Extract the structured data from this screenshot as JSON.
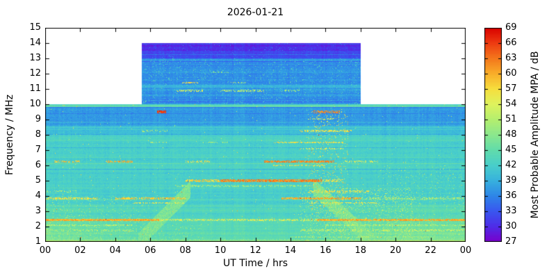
{
  "chart_data": {
    "type": "heatmap",
    "title": "2026-01-21",
    "xlabel": "UT Time / hrs",
    "ylabel": "Frequency / MHz",
    "x_range_hours": [
      0,
      24
    ],
    "y_range_mhz": [
      1,
      15
    ],
    "x_ticks": [
      "00",
      "02",
      "04",
      "06",
      "08",
      "10",
      "12",
      "14",
      "16",
      "18",
      "20",
      "22",
      "00"
    ],
    "y_ticks": [
      1,
      2,
      3,
      4,
      5,
      6,
      7,
      8,
      9,
      10,
      11,
      12,
      13,
      14,
      15
    ],
    "grid": false,
    "colorbar": {
      "label": "Most Probable Amplitude MPA / dB",
      "min": 27,
      "max": 69,
      "ticks": [
        27,
        30,
        33,
        36,
        39,
        42,
        45,
        48,
        51,
        54,
        57,
        60,
        63,
        66,
        69
      ],
      "colormap_stops": [
        [
          27,
          "#7a00cc"
        ],
        [
          30,
          "#4f2de8"
        ],
        [
          33,
          "#3a57f0"
        ],
        [
          36,
          "#2e86e8"
        ],
        [
          39,
          "#38b2de"
        ],
        [
          42,
          "#49cfcb"
        ],
        [
          45,
          "#62dcab"
        ],
        [
          48,
          "#8ce88e"
        ],
        [
          51,
          "#b5ef6f"
        ],
        [
          54,
          "#dff35e"
        ],
        [
          57,
          "#f7df3e"
        ],
        [
          60,
          "#f9ae2a"
        ],
        [
          63,
          "#f4771c"
        ],
        [
          66,
          "#ee3b12"
        ],
        [
          69,
          "#d90000"
        ]
      ]
    },
    "coverage": {
      "night_max_freq_mhz": 10,
      "day_max_freq_mhz": 14,
      "day_window_hours": [
        5.5,
        18.0
      ]
    },
    "background_bands": [
      {
        "f0": 13.5,
        "f1": 14.0,
        "level": 29.5
      },
      {
        "f0": 13.0,
        "f1": 13.5,
        "level": 31.5
      },
      {
        "f0": 10.0,
        "f1": 13.0,
        "level": 37.0
      },
      {
        "f0": 9.8,
        "f1": 10.0,
        "level": 42.5
      },
      {
        "f0": 8.6,
        "f1": 9.8,
        "level": 37.0
      },
      {
        "f0": 8.0,
        "f1": 8.6,
        "level": 40.5
      },
      {
        "f0": 1.0,
        "f1": 8.0,
        "level": 42.3
      }
    ],
    "lowfreq_green": {
      "f_max": 3.5,
      "per_mhz": 1.1
    },
    "night_boost": {
      "f_max": 4.5,
      "amp": 3.5
    },
    "terminator_wedges": [
      {
        "t0": 5.3,
        "t1": 8.3,
        "f_start": 1.0,
        "slope": 1.15,
        "halfwidth": 0.55,
        "level": 47
      },
      {
        "t0": 15.3,
        "t1": 18.8,
        "f_start": 4.6,
        "slope": -1.05,
        "halfwidth": 0.55,
        "level": 47
      }
    ],
    "interference_streaks": [
      {
        "f": 1.1,
        "hw": 0.1,
        "segments": [
          [
            0,
            24,
            47,
            0.7
          ]
        ]
      },
      {
        "f": 1.3,
        "hw": 0.05,
        "segments": [
          [
            14,
            22,
            50,
            0.4
          ]
        ]
      },
      {
        "f": 1.75,
        "hw": 0.05,
        "segments": [
          [
            0,
            5,
            50,
            0.4
          ],
          [
            14.5,
            24,
            52,
            0.5
          ]
        ]
      },
      {
        "f": 2.1,
        "hw": 0.05,
        "segments": [
          [
            0,
            5,
            52,
            0.5
          ],
          [
            16,
            24,
            52,
            0.5
          ]
        ]
      },
      {
        "f": 2.45,
        "hw": 0.07,
        "segments": [
          [
            0,
            6.5,
            60,
            0.9
          ],
          [
            6.5,
            15.5,
            54,
            0.55
          ],
          [
            15.5,
            24,
            60,
            0.85
          ]
        ]
      },
      {
        "f": 3.55,
        "hw": 0.05,
        "segments": [
          [
            5,
            8,
            55,
            0.5
          ],
          [
            15,
            19,
            55,
            0.5
          ]
        ]
      },
      {
        "f": 3.85,
        "hw": 0.07,
        "segments": [
          [
            0,
            3,
            56,
            0.6
          ],
          [
            4,
            8,
            58,
            0.7
          ],
          [
            13.5,
            18,
            60,
            0.75
          ],
          [
            18,
            24,
            52,
            0.4
          ]
        ]
      },
      {
        "f": 4.3,
        "hw": 0.05,
        "segments": [
          [
            0,
            2,
            50,
            0.3
          ],
          [
            15,
            18.5,
            56,
            0.5
          ]
        ]
      },
      {
        "f": 4.65,
        "hw": 0.06,
        "segments": [
          [
            7.5,
            15,
            50,
            0.45
          ]
        ]
      },
      {
        "f": 5.0,
        "hw": 0.08,
        "segments": [
          [
            8,
            10,
            58,
            0.6
          ],
          [
            10,
            15.8,
            62,
            0.85
          ],
          [
            15.8,
            17,
            56,
            0.5
          ]
        ]
      },
      {
        "f": 6.0,
        "hw": 0.05,
        "segments": [
          [
            13,
            16,
            56,
            0.4
          ]
        ]
      },
      {
        "f": 6.25,
        "hw": 0.07,
        "segments": [
          [
            0.5,
            2,
            58,
            0.5
          ],
          [
            3.5,
            5,
            60,
            0.5
          ],
          [
            8,
            9.5,
            56,
            0.4
          ],
          [
            12.5,
            16.5,
            62,
            0.8
          ],
          [
            17,
            19,
            54,
            0.35
          ]
        ]
      },
      {
        "f": 7.1,
        "hw": 0.05,
        "segments": [
          [
            14.5,
            17,
            54,
            0.45
          ]
        ]
      },
      {
        "f": 7.5,
        "hw": 0.06,
        "segments": [
          [
            6,
            7,
            52,
            0.4
          ],
          [
            9,
            10.5,
            50,
            0.35
          ],
          [
            13,
            17,
            56,
            0.6
          ]
        ]
      },
      {
        "f": 8.25,
        "hw": 0.06,
        "segments": [
          [
            5.5,
            7,
            50,
            0.3
          ],
          [
            14.5,
            17.5,
            56,
            0.5
          ]
        ]
      },
      {
        "f": 9.05,
        "hw": 0.05,
        "segments": [
          [
            15,
            16.5,
            54,
            0.4
          ]
        ]
      },
      {
        "f": 9.5,
        "hw": 0.08,
        "segments": [
          [
            6.4,
            6.9,
            66,
            0.9
          ],
          [
            15.3,
            16.8,
            62,
            0.6
          ]
        ]
      },
      {
        "f": 10.9,
        "hw": 0.07,
        "segments": [
          [
            7.5,
            9,
            54,
            0.5
          ],
          [
            10,
            12.5,
            52,
            0.4
          ],
          [
            13.5,
            14.5,
            50,
            0.35
          ]
        ]
      },
      {
        "f": 11.4,
        "hw": 0.05,
        "segments": [
          [
            7.8,
            8.8,
            56,
            0.5
          ],
          [
            10.5,
            11.5,
            50,
            0.3
          ]
        ]
      },
      {
        "f": 12.1,
        "hw": 0.05,
        "segments": [
          [
            9.5,
            10.5,
            48,
            0.3
          ]
        ]
      }
    ],
    "speckle_regions": [
      {
        "t0": 15.0,
        "t1": 17.3,
        "f0": 2.8,
        "f1": 9.7,
        "prob": 0.05,
        "amp": 56
      },
      {
        "t0": 14.5,
        "t1": 21.0,
        "f0": 1.0,
        "f1": 4.5,
        "prob": 0.1,
        "amp": 50
      },
      {
        "t0": 0.0,
        "t1": 6.0,
        "f0": 1.0,
        "f1": 4.0,
        "prob": 0.06,
        "amp": 49
      },
      {
        "t0": 6.0,
        "t1": 9.0,
        "f0": 1.0,
        "f1": 2.2,
        "prob": 0.07,
        "amp": 47
      },
      {
        "t0": 19.0,
        "t1": 24.0,
        "f0": 1.0,
        "f1": 6.0,
        "prob": 0.04,
        "amp": 48
      },
      {
        "t0": 5.5,
        "t1": 18.0,
        "f0": 10.0,
        "f1": 13.0,
        "prob": 0.05,
        "amp": 42
      },
      {
        "t0": 5.5,
        "t1": 18.0,
        "f0": 13.0,
        "f1": 14.0,
        "prob": 0.04,
        "amp": 34
      }
    ]
  }
}
